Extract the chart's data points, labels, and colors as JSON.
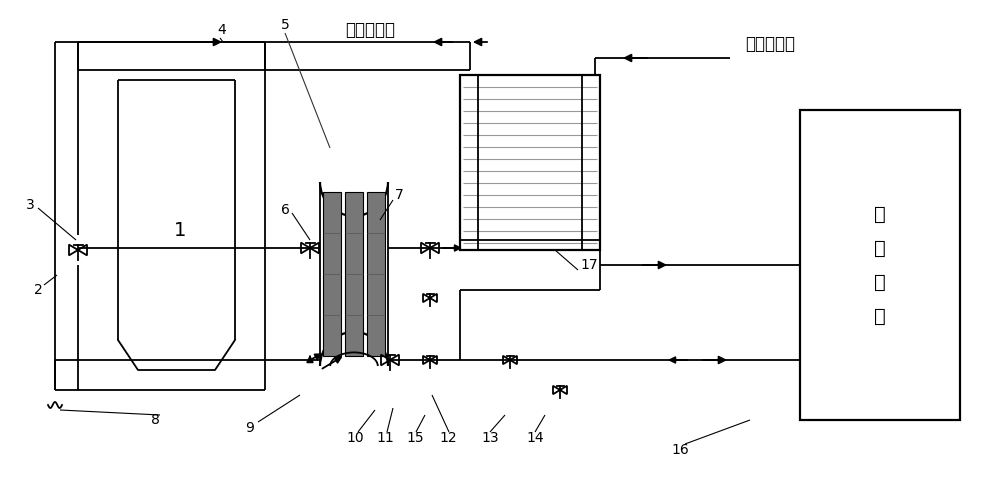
{
  "bg_color": "#ffffff",
  "lc": "#000000",
  "gc": "#777777",
  "lgc": "#aaaaaa",
  "labels": [
    "1",
    "2",
    "3",
    "4",
    "5",
    "6",
    "7",
    "8",
    "9",
    "10",
    "11",
    "15",
    "12",
    "13",
    "14",
    "16",
    "17"
  ],
  "text_liuxiang": "流向凝汽器",
  "text_zhongyagang": "中压缸抜汽",
  "text_rewang": "热\n网\n用\n户",
  "fs_label": 10,
  "fs_cn": 12,
  "lw": 1.3,
  "lw2": 1.6
}
